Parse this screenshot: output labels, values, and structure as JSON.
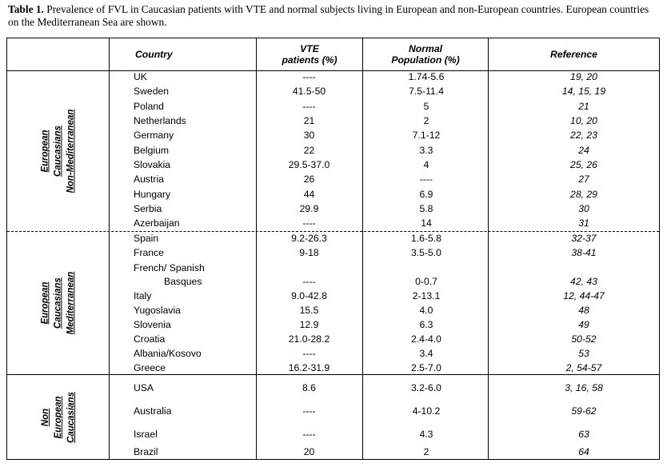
{
  "caption": {
    "label": "Table 1.",
    "text": " Prevalence of FVL in Caucasian patients with VTE and normal subjects living in European and non-European countries. European countries on the Mediterranean  Sea are shown."
  },
  "headers": {
    "country": "Country",
    "vte_line1": "VTE",
    "vte_line2": "patients (%)",
    "normal_line1": "Normal",
    "normal_line2": "Population  (%)",
    "reference": "Reference"
  },
  "groups": {
    "non_med": [
      "European",
      "Caucasians",
      "Non-Mediterranean"
    ],
    "med": [
      "European",
      "Caucasians",
      "Mediterranean"
    ],
    "non_eu": [
      "Non",
      "European",
      "Caucasians"
    ]
  },
  "rows": [
    {
      "country": "UK",
      "vte": "----",
      "normal": "1.74-5.6",
      "ref": "19, 20"
    },
    {
      "country": "Sweden",
      "vte": "41.5-50",
      "normal": "7.5-11.4",
      "ref": "14, 15, 19"
    },
    {
      "country": "Poland",
      "vte": "----",
      "normal": "5",
      "ref": "21"
    },
    {
      "country": "Netherlands",
      "vte": "21",
      "normal": "2",
      "ref": "10, 20"
    },
    {
      "country": "Germany",
      "vte": "30",
      "normal": "7.1-12",
      "ref": "22, 23"
    },
    {
      "country": "Belgium",
      "vte": "22",
      "normal": "3.3",
      "ref": "24"
    },
    {
      "country": "Slovakia",
      "vte": "29.5-37.0",
      "normal": "4",
      "ref": "25, 26"
    },
    {
      "country": "Austria",
      "vte": "26",
      "normal": "----",
      "ref": "27"
    },
    {
      "country": "Hungary",
      "vte": "44",
      "normal": "6.9",
      "ref": "28, 29"
    },
    {
      "country": "Serbia",
      "vte": "29.9",
      "normal": "5.8",
      "ref": "30"
    },
    {
      "country": "Azerbaijan",
      "vte": "----",
      "normal": "14",
      "ref": "31"
    },
    {
      "country": "Spain",
      "vte": "9.2-26.3",
      "normal": "1.6-5.8",
      "ref": "32-37"
    },
    {
      "country": "France",
      "vte": "9-18",
      "normal": "3.5-5.0",
      "ref": "38-41"
    },
    {
      "country": "French/ Spanish",
      "country2": "Basques",
      "vte": "----",
      "normal": "0-0.7",
      "ref": "42, 43"
    },
    {
      "country": "Italy",
      "vte": "9.0-42.8",
      "normal": "2-13.1",
      "ref": "12, 44-47"
    },
    {
      "country": "Yugoslavia",
      "vte": "15.5",
      "normal": "4.0",
      "ref": "48"
    },
    {
      "country": "Slovenia",
      "vte": "12.9",
      "normal": "6.3",
      "ref": "49"
    },
    {
      "country": "Croatia",
      "vte": "21.0-28.2",
      "normal": "2.4-4.0",
      "ref": "50-52"
    },
    {
      "country": "Albania/Kosovo",
      "vte": "----",
      "normal": "3.4",
      "ref": "53"
    },
    {
      "country": "Greece",
      "vte": "16.2-31.9",
      "normal": "2.5-7.0",
      "ref": "2, 54-57"
    },
    {
      "country": "USA",
      "vte": "8.6",
      "normal": "3.2-6.0",
      "ref": "3, 16, 58"
    },
    {
      "country": "Australia",
      "vte": "----",
      "normal": "4-10.2",
      "ref": "59-62"
    },
    {
      "country": "Israel",
      "vte": "----",
      "normal": "4.3",
      "ref": "63"
    },
    {
      "country": "Brazil",
      "vte": "20",
      "normal": "2",
      "ref": "64"
    }
  ]
}
